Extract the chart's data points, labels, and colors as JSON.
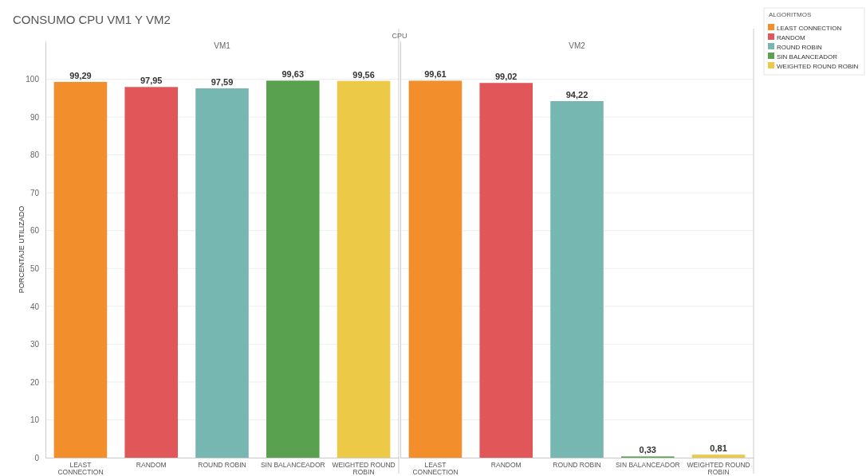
{
  "chart_data": [
    {
      "type": "bar",
      "title": "CONSUMO CPU VM1 Y VM2",
      "annotations": [
        "CPU"
      ],
      "subtitle": "VM1",
      "ylabel": "PORCENTAJE UTILIZADO",
      "categories": [
        "LEAST CONNECTION",
        "RANDOM",
        "ROUND ROBIN",
        "SIN BALANCEADOR",
        "WEIGHTED ROUND ROBIN"
      ],
      "stacked": true,
      "series": [
        {
          "name": "LEAST CONNECTION",
          "color": "#f28e2b",
          "values": [
            99.29,
            null,
            null,
            null,
            null
          ],
          "value_labels": [
            "99,29",
            null,
            null,
            null,
            null
          ]
        },
        {
          "name": "RANDOM",
          "color": "#e15759",
          "values": [
            null,
            97.95,
            null,
            null,
            null
          ],
          "value_labels": [
            null,
            "97,95",
            null,
            null,
            null
          ]
        },
        {
          "name": "ROUND ROBIN",
          "color": "#76b7b2",
          "values": [
            null,
            null,
            97.59,
            null,
            null
          ],
          "value_labels": [
            null,
            null,
            "97,59",
            null,
            null
          ]
        },
        {
          "name": "SIN BALANCEADOR",
          "color": "#59a14f",
          "values": [
            null,
            null,
            null,
            99.63,
            null
          ],
          "value_labels": [
            null,
            null,
            null,
            "99,63",
            null
          ]
        },
        {
          "name": "WEIGHTED ROUND ROBIN",
          "color": "#edc948",
          "values": [
            null,
            null,
            null,
            null,
            99.56
          ],
          "value_labels": [
            null,
            null,
            null,
            null,
            "99,56"
          ]
        }
      ],
      "ylim": [
        0,
        110
      ],
      "yticks": [
        0,
        10,
        20,
        30,
        40,
        50,
        60,
        70,
        80,
        90,
        100
      ],
      "grid": "y",
      "legend": "top right",
      "legend_title": "ALGORITMOS"
    },
    {
      "type": "bar",
      "subtitle": "VM2",
      "categories": [
        "LEAST CONNECTION",
        "RANDOM",
        "ROUND ROBIN",
        "SIN BALANCEADOR",
        "WEIGHTED ROUND ROBIN"
      ],
      "stacked": true,
      "series": [
        {
          "color": "#f28e2b",
          "values": [
            99.61,
            null,
            null,
            null,
            null
          ],
          "value_labels": [
            "99,61",
            null,
            null,
            null,
            null
          ]
        },
        {
          "color": "#e15759",
          "values": [
            null,
            99.02,
            null,
            null,
            null
          ],
          "value_labels": [
            null,
            "99,02",
            null,
            null,
            null
          ]
        },
        {
          "color": "#76b7b2",
          "values": [
            null,
            null,
            94.22,
            null,
            null
          ],
          "value_labels": [
            null,
            null,
            "94,22",
            null,
            null
          ]
        },
        {
          "color": "#59a14f",
          "values": [
            null,
            null,
            null,
            0.33,
            null
          ],
          "value_labels": [
            null,
            null,
            null,
            "0,33",
            null
          ]
        },
        {
          "color": "#edc948",
          "values": [
            null,
            null,
            null,
            null,
            0.81
          ],
          "value_labels": [
            null,
            null,
            null,
            null,
            "0,81"
          ]
        }
      ],
      "ylim": [
        0,
        110
      ],
      "yticks": [
        0,
        10,
        20,
        30,
        40,
        50,
        60,
        70,
        80,
        90,
        100
      ],
      "grid": "y",
      "tick_labels": "x"
    }
  ]
}
